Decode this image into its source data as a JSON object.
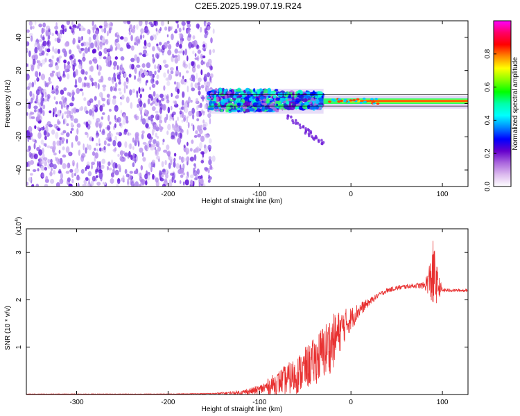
{
  "title": "C2E5.2025.199.07.19.R24",
  "colors": {
    "snr_line": "#e83030",
    "axis": "#000000",
    "colorbar_stops": [
      "#ff00ff",
      "#ff0066",
      "#ff0000",
      "#ff8800",
      "#ffff00",
      "#88ff00",
      "#00ff00",
      "#00ffaa",
      "#00ffff",
      "#0088ff",
      "#0000ff",
      "#6600cc",
      "#aa66dd",
      "#ddbbee",
      "#ffffff"
    ]
  },
  "chart_data": [
    {
      "type": "heatmap",
      "title": "",
      "xlabel": "Height of straight line (km)",
      "ylabel": "Frequency (Hz)",
      "xlim": [
        -355,
        128
      ],
      "ylim": [
        -50,
        50
      ],
      "x_ticks": [
        -300,
        -200,
        -100,
        0,
        100
      ],
      "x_tick_labels": [
        "-300",
        "-200",
        "-100",
        "0",
        "100"
      ],
      "y_ticks": [
        -40,
        -20,
        0,
        20,
        40
      ],
      "y_tick_labels": [
        "-40",
        "-20",
        "0",
        "20",
        "40"
      ],
      "regions": [
        {
          "x": [
            -355,
            -155
          ],
          "freq": [
            -50,
            50
          ],
          "amplitude": 0.05,
          "pattern": "scattered noise"
        },
        {
          "x": [
            -155,
            -30
          ],
          "freq": [
            -5,
            10
          ],
          "amplitude": 0.3,
          "pattern": "spread signal"
        },
        {
          "x": [
            -30,
            128
          ],
          "freq": [
            0,
            3
          ],
          "amplitude": 0.9,
          "pattern": "narrow line"
        }
      ],
      "colorbar": {
        "label": "Normalized spectral amplitude",
        "range": [
          0,
          1
        ],
        "ticks": [
          0.0,
          0.2,
          0.4,
          0.6,
          0.8
        ],
        "tick_labels": [
          "0.0",
          "0.2",
          "0.4",
          "0.6",
          "0.8"
        ]
      }
    },
    {
      "type": "line",
      "title": "",
      "xlabel": "Height of straight line (km)",
      "ylabel": "SNR (10 * v/v)",
      "y_scale_label": "(x10",
      "y_scale_exp": "4",
      "xlim": [
        -355,
        128
      ],
      "ylim": [
        0,
        3.5
      ],
      "x_ticks": [
        -300,
        -200,
        -100,
        0,
        100
      ],
      "x_tick_labels": [
        "-300",
        "-200",
        "-100",
        "0",
        "100"
      ],
      "y_ticks": [
        1,
        2,
        3
      ],
      "y_tick_labels": [
        "1",
        "2",
        "3"
      ],
      "series": [
        {
          "x": [
            -355,
            -300,
            -250,
            -200,
            -150,
            -120,
            -100,
            -80,
            -60,
            -40,
            -30,
            -20,
            -10,
            0,
            10,
            20,
            30,
            40,
            50,
            60,
            70,
            80,
            85,
            90,
            95,
            100,
            110,
            128
          ],
          "values": [
            0.01,
            0.01,
            0.01,
            0.01,
            0.02,
            0.04,
            0.1,
            0.25,
            0.4,
            0.7,
            0.9,
            1.1,
            1.4,
            1.6,
            1.8,
            1.95,
            2.1,
            2.2,
            2.25,
            2.28,
            2.3,
            2.3,
            2.4,
            2.5,
            2.3,
            2.2,
            2.2,
            2.2
          ],
          "noise_amplitude": [
            0.005,
            0.005,
            0.005,
            0.005,
            0.01,
            0.05,
            0.1,
            0.25,
            0.4,
            0.5,
            0.6,
            0.6,
            0.4,
            0.25,
            0.15,
            0.08,
            0.05,
            0.05,
            0.05,
            0.05,
            0.05,
            0.08,
            0.3,
            0.8,
            0.3,
            0.05,
            0.03,
            0.03
          ]
        }
      ]
    }
  ]
}
